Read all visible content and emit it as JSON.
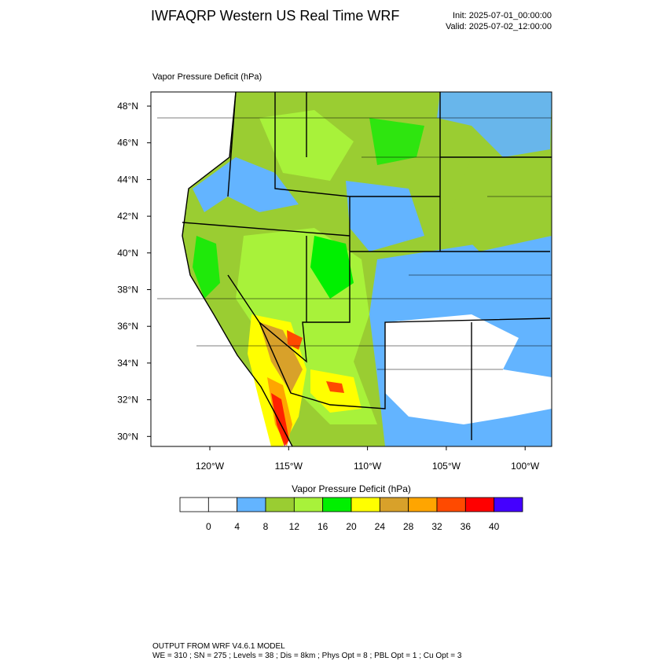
{
  "header": {
    "title": "IWFAQRP Western US Real Time WRF",
    "init": "Init: 2025-07-01_00:00:00",
    "valid": "Valid: 2025-07-02_12:00:00"
  },
  "map": {
    "field_label": "Vapor Pressure Deficit   (hPa)",
    "lat_labels": [
      "48°N",
      "46°N",
      "44°N",
      "42°N",
      "40°N",
      "38°N",
      "36°N",
      "34°N",
      "32°N",
      "30°N"
    ],
    "lon_labels": [
      "120°W",
      "115°W",
      "110°W",
      "105°W",
      "100°W"
    ]
  },
  "colorbar": {
    "title": "Vapor Pressure Deficit  (hPa)",
    "colors": [
      "#ffffff",
      "#ffffff",
      "#63b4ff",
      "#9acd32",
      "#a8f23a",
      "#00f000",
      "#ffff00",
      "#d8a12a",
      "#ffa500",
      "#ff4a00",
      "#ff0000",
      "#4400ff"
    ],
    "labels": [
      "0",
      "4",
      "8",
      "12",
      "16",
      "20",
      "24",
      "28",
      "32",
      "36",
      "40"
    ]
  },
  "footer": {
    "line1": "OUTPUT FROM WRF V4.6.1 MODEL",
    "line2": "WE = 310 ; SN = 275 ; Levels = 38 ; Dis = 8km ; Phys Opt = 8 ; PBL Opt = 1 ; Cu Opt = 3"
  }
}
